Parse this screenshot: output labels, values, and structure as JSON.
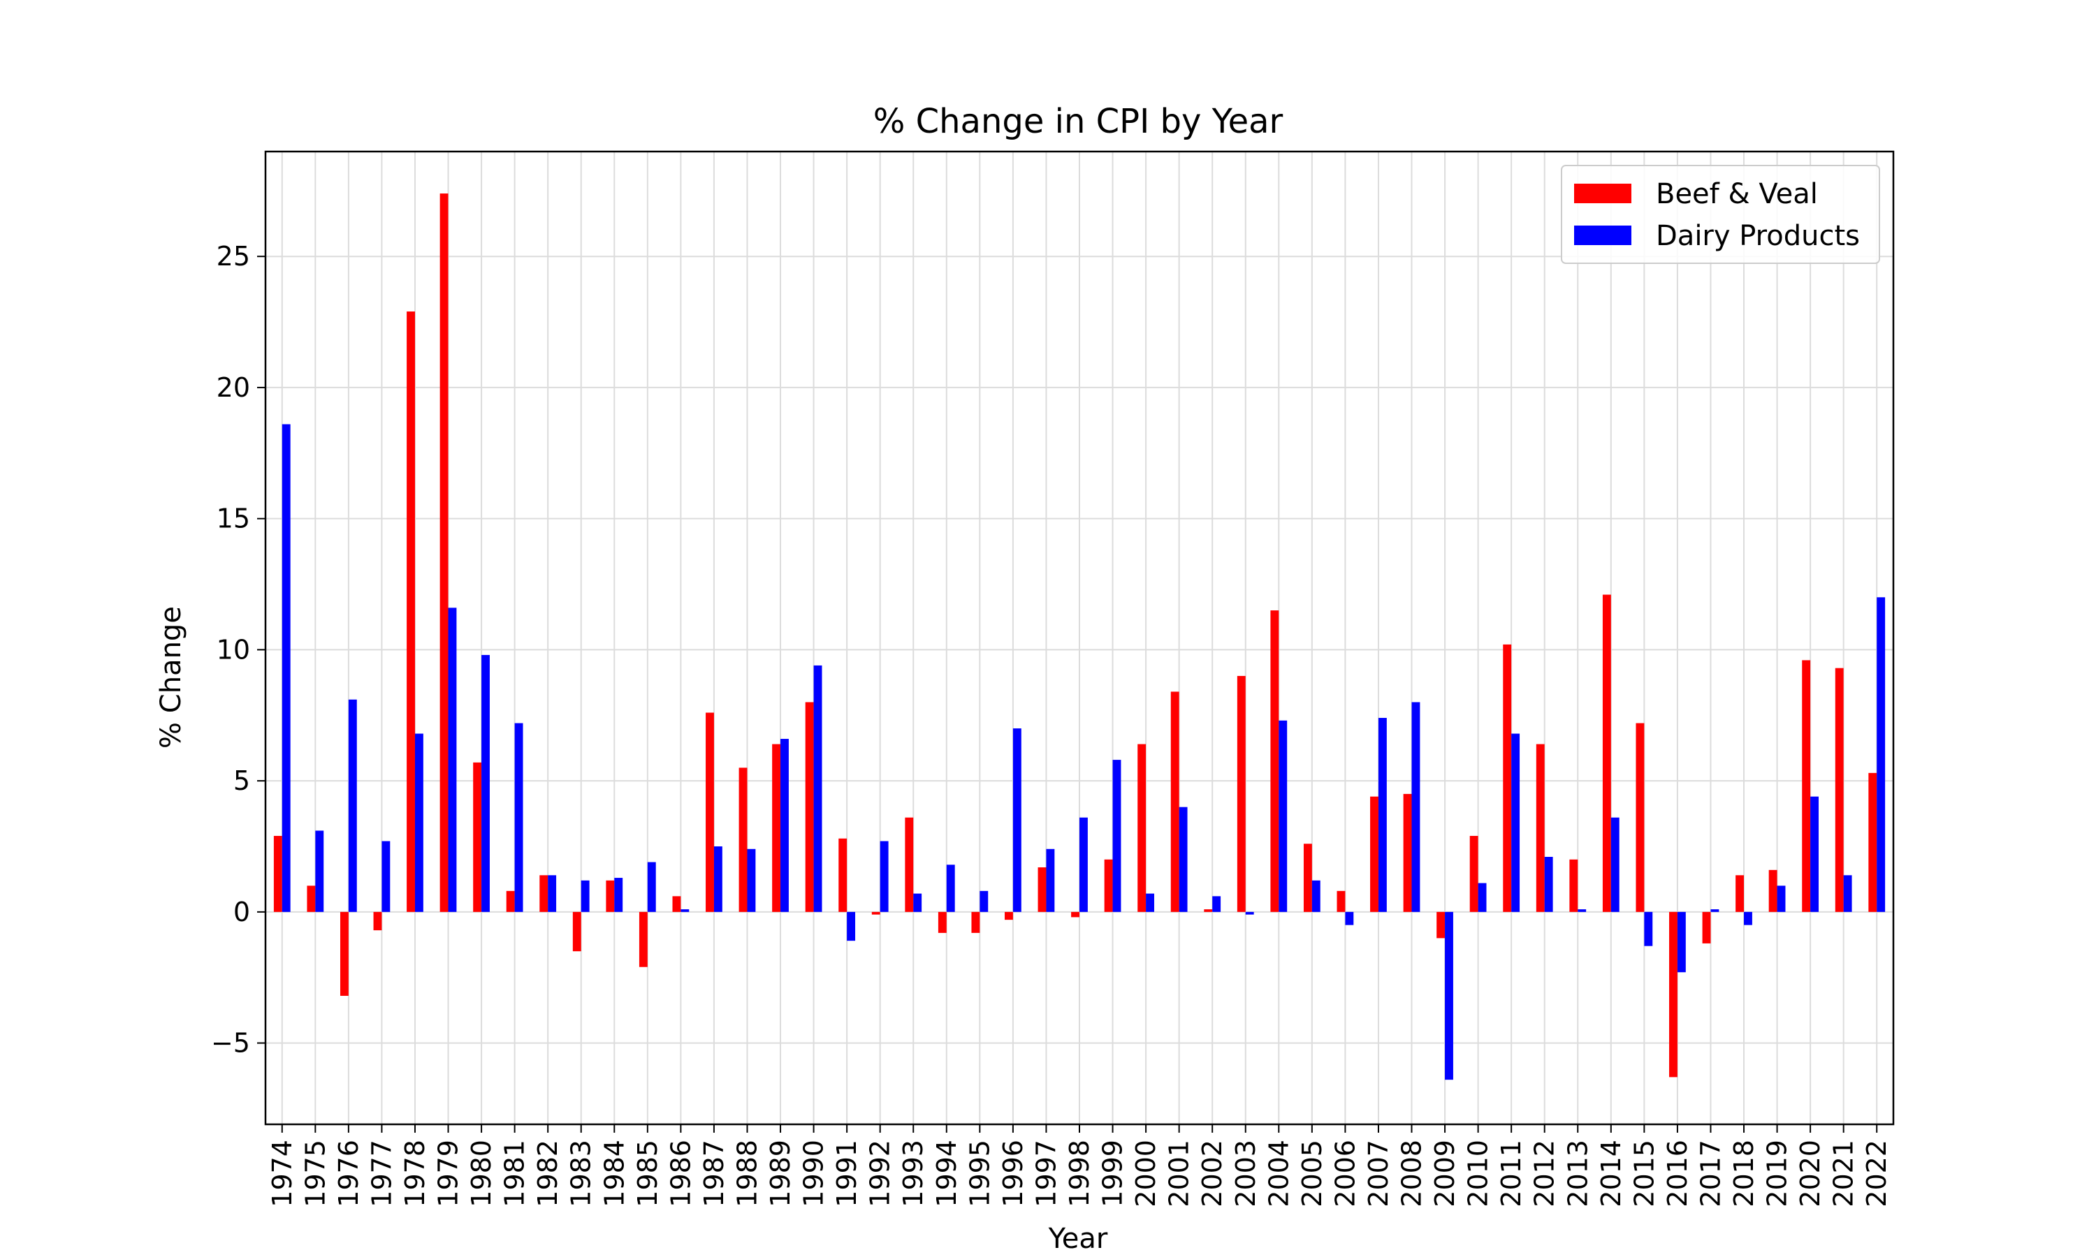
{
  "chart_data": {
    "type": "bar",
    "title": "% Change in CPI by Year",
    "xlabel": "Year",
    "ylabel": "% Change",
    "ylim": [
      -8.1,
      29.0
    ],
    "yticks": [
      -5,
      0,
      5,
      10,
      15,
      20,
      25
    ],
    "grid": true,
    "legend_position": "top-right",
    "categories": [
      "1974",
      "1975",
      "1976",
      "1977",
      "1978",
      "1979",
      "1980",
      "1981",
      "1982",
      "1983",
      "1984",
      "1985",
      "1986",
      "1987",
      "1988",
      "1989",
      "1990",
      "1991",
      "1992",
      "1993",
      "1994",
      "1995",
      "1996",
      "1997",
      "1998",
      "1999",
      "2000",
      "2001",
      "2002",
      "2003",
      "2004",
      "2005",
      "2006",
      "2007",
      "2008",
      "2009",
      "2010",
      "2011",
      "2012",
      "2013",
      "2014",
      "2015",
      "2016",
      "2017",
      "2018",
      "2019",
      "2020",
      "2021",
      "2022"
    ],
    "series": [
      {
        "name": "Beef & Veal",
        "color": "#ff0000",
        "values": [
          2.9,
          1.0,
          -3.2,
          -0.7,
          22.9,
          27.4,
          5.7,
          0.8,
          1.4,
          -1.5,
          1.2,
          -2.1,
          0.6,
          7.6,
          5.5,
          6.4,
          8.0,
          2.8,
          -0.1,
          3.6,
          -0.8,
          -0.8,
          -0.3,
          1.7,
          -0.2,
          2.0,
          6.4,
          8.4,
          0.1,
          9.0,
          11.5,
          2.6,
          0.8,
          4.4,
          4.5,
          -1.0,
          2.9,
          10.2,
          6.4,
          2.0,
          12.1,
          7.2,
          -6.3,
          -1.2,
          1.4,
          1.6,
          9.6,
          9.3,
          5.3
        ]
      },
      {
        "name": "Dairy Products",
        "color": "#0000ff",
        "values": [
          18.6,
          3.1,
          8.1,
          2.7,
          6.8,
          11.6,
          9.8,
          7.2,
          1.4,
          1.2,
          1.3,
          1.9,
          0.1,
          2.5,
          2.4,
          6.6,
          9.4,
          -1.1,
          2.7,
          0.7,
          1.8,
          0.8,
          7.0,
          2.4,
          3.6,
          5.8,
          0.7,
          4.0,
          0.6,
          -0.1,
          7.3,
          1.2,
          -0.5,
          7.4,
          8.0,
          -6.4,
          1.1,
          6.8,
          2.1,
          0.1,
          3.6,
          -1.3,
          -2.3,
          0.1,
          -0.5,
          1.0,
          4.4,
          1.4,
          12.0
        ]
      }
    ]
  }
}
